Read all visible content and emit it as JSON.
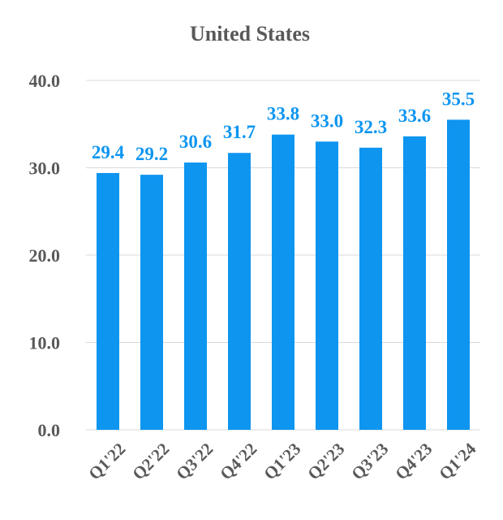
{
  "chart_data": {
    "type": "bar",
    "title": "United States",
    "categories": [
      "Q1'22",
      "Q2'22",
      "Q3'22",
      "Q4'22",
      "Q1'23",
      "Q2'23",
      "Q3'23",
      "Q4'23",
      "Q1'24"
    ],
    "values": [
      29.4,
      29.2,
      30.6,
      31.7,
      33.8,
      33.0,
      32.3,
      33.6,
      35.5
    ],
    "data_labels": [
      "29.4",
      "29.2",
      "30.6",
      "31.7",
      "33.8",
      "33.0",
      "32.3",
      "33.6",
      "35.5"
    ],
    "yticks": [
      0,
      10,
      20,
      30,
      40
    ],
    "ytick_labels": [
      "0.0",
      "10.0",
      "20.0",
      "30.0",
      "40.0"
    ],
    "ylim": [
      0,
      40
    ],
    "grid": true,
    "legend": "none",
    "bar_color": "#0d95f0",
    "label_color": "#0d95f0"
  }
}
